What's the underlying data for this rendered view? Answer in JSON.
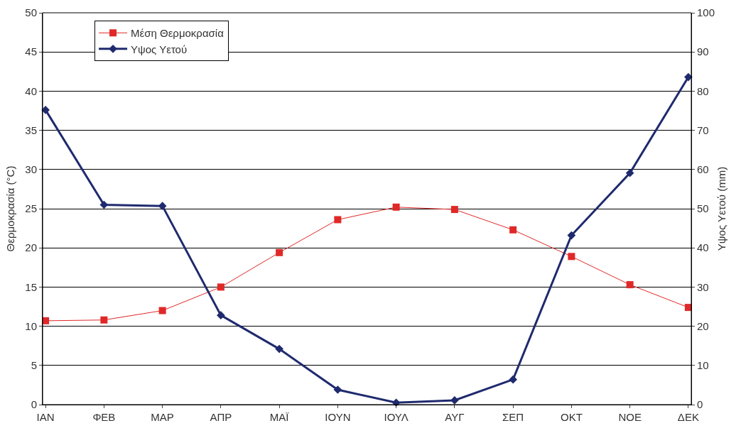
{
  "chart_data": {
    "type": "line",
    "categories": [
      "ΙΑΝ",
      "ΦΕΒ",
      "ΜΑΡ",
      "ΑΠΡ",
      "ΜΑΪ",
      "ΙΟΥΝ",
      "ΙΟΥΛ",
      "ΑΥΓ",
      "ΣΕΠ",
      "ΟΚΤ",
      "ΝΟΕ",
      "ΔΕΚ"
    ],
    "ylabel": "Θερμοκρασία (°C)",
    "y2label": "Υψος Υετού (mm)",
    "ylim": [
      0,
      50
    ],
    "yticks": [
      0,
      5,
      10,
      15,
      20,
      25,
      30,
      35,
      40,
      45,
      50
    ],
    "y2lim": [
      0,
      100
    ],
    "y2ticks": [
      0,
      10,
      20,
      30,
      40,
      50,
      60,
      70,
      80,
      90,
      100
    ],
    "grid": "y",
    "legend": "top left",
    "line_style": "solid",
    "series": [
      {
        "name": "Μέση Θερμοκρασία",
        "color": "#e02828",
        "marker": "square",
        "values": [
          10.7,
          10.8,
          12.0,
          15.0,
          19.4,
          23.6,
          25.2,
          24.9,
          22.3,
          18.9,
          15.3,
          12.4
        ]
      },
      {
        "name": "Υψος Υετού",
        "color": "#1f2a6e",
        "marker": "diamond",
        "axis": "y2",
        "values": [
          75.2,
          51,
          50.7,
          22.8,
          14.2,
          3.8,
          0.5,
          1.1,
          6.4,
          43.2,
          59.1,
          83.6
        ]
      }
    ]
  }
}
